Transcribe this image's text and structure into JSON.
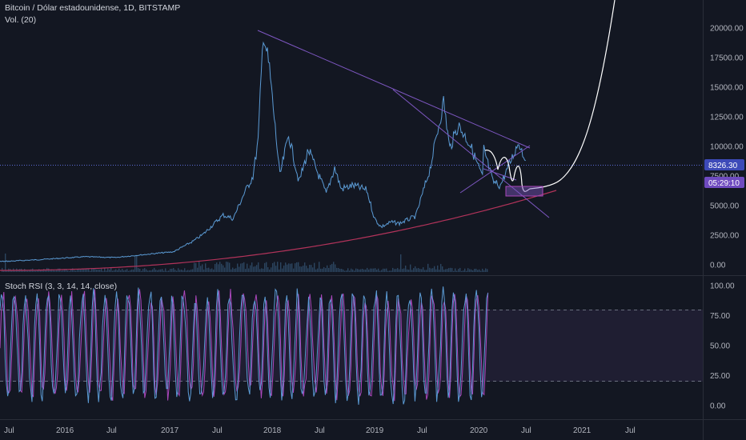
{
  "header": {
    "symbol_line": "Bitcoin / Dólar estadounidense, 1D, BITSTAMP",
    "volume_line": "Vol. (20)",
    "indicator_line": "Stoch RSI (3, 3, 14, 14, close)"
  },
  "price_label": "8326.30",
  "countdown_label": "05:29:10",
  "colors": {
    "background": "#131722",
    "price_line": "#5b9bd5",
    "trendline": "#7e57c2",
    "support_curve": "#b2335a",
    "projection": "#ffffff",
    "stoch_k": "#5b9bd5",
    "stoch_d": "#ab47bc",
    "rsi_band": "#2a2440",
    "price_label_bg": "#3d4ab8",
    "countdown_bg": "#6f4bbf"
  },
  "chart_data": [
    {
      "type": "line",
      "title": "Bitcoin / Dólar estadounidense, 1D, BITSTAMP",
      "x_tick_labels": [
        "Jul",
        "2016",
        "Jul",
        "2017",
        "Jul",
        "2018",
        "Jul",
        "2019",
        "Jul",
        "2020",
        "Jul",
        "2021",
        "Jul"
      ],
      "y_tick_labels": [
        "0.00",
        "2500.00",
        "5000.00",
        "7500.00",
        "10000.00",
        "12500.00",
        "15000.00",
        "17500.00",
        "20000.00"
      ],
      "ylim": [
        0,
        22000
      ],
      "current_price": 8326.3,
      "series": [
        {
          "x": [
            "2015-06",
            "2015-10",
            "2016-01",
            "2016-06",
            "2016-09",
            "2017-01",
            "2017-03",
            "2017-05",
            "2017-06",
            "2017-08",
            "2017-09",
            "2017-10",
            "2017-11",
            "2017-12-01",
            "2017-12-17",
            "2018-01-05",
            "2018-02-06",
            "2018-03-05",
            "2018-04-06",
            "2018-05-05",
            "2018-06-29",
            "2018-07-25",
            "2018-08-14",
            "2018-09-20",
            "2018-11-01",
            "2018-11-25",
            "2018-12-15",
            "2019-01-15",
            "2019-02-10",
            "2019-04-01",
            "2019-05-15",
            "2019-06-26",
            "2019-07-15",
            "2019-08-10",
            "2019-09-15",
            "2019-10-24",
            "2019-10-28",
            "2019-11-25",
            "2019-12-18",
            "2020-01-15",
            "2020-02-13",
            "2020-03-05"
          ],
          "values": [
            240,
            290,
            420,
            680,
            610,
            950,
            1100,
            2000,
            2600,
            4200,
            3900,
            5800,
            7500,
            10500,
            19700,
            16500,
            7500,
            11000,
            7000,
            9700,
            6000,
            8200,
            6400,
            6700,
            6300,
            3900,
            3200,
            3600,
            3500,
            4100,
            8100,
            13800,
            9800,
            11800,
            10200,
            7400,
            9800,
            7000,
            6700,
            8500,
            10400,
            8800
          ]
        }
      ],
      "volume_series": {
        "name": "Vol. (20)"
      }
    },
    {
      "type": "line",
      "title": "Stoch RSI (3, 3, 14, 14, close)",
      "y_tick_labels": [
        "0.00",
        "25.00",
        "50.00",
        "75.00",
        "100.00"
      ],
      "ylim": [
        0,
        100
      ],
      "bands": [
        20,
        80
      ]
    }
  ]
}
